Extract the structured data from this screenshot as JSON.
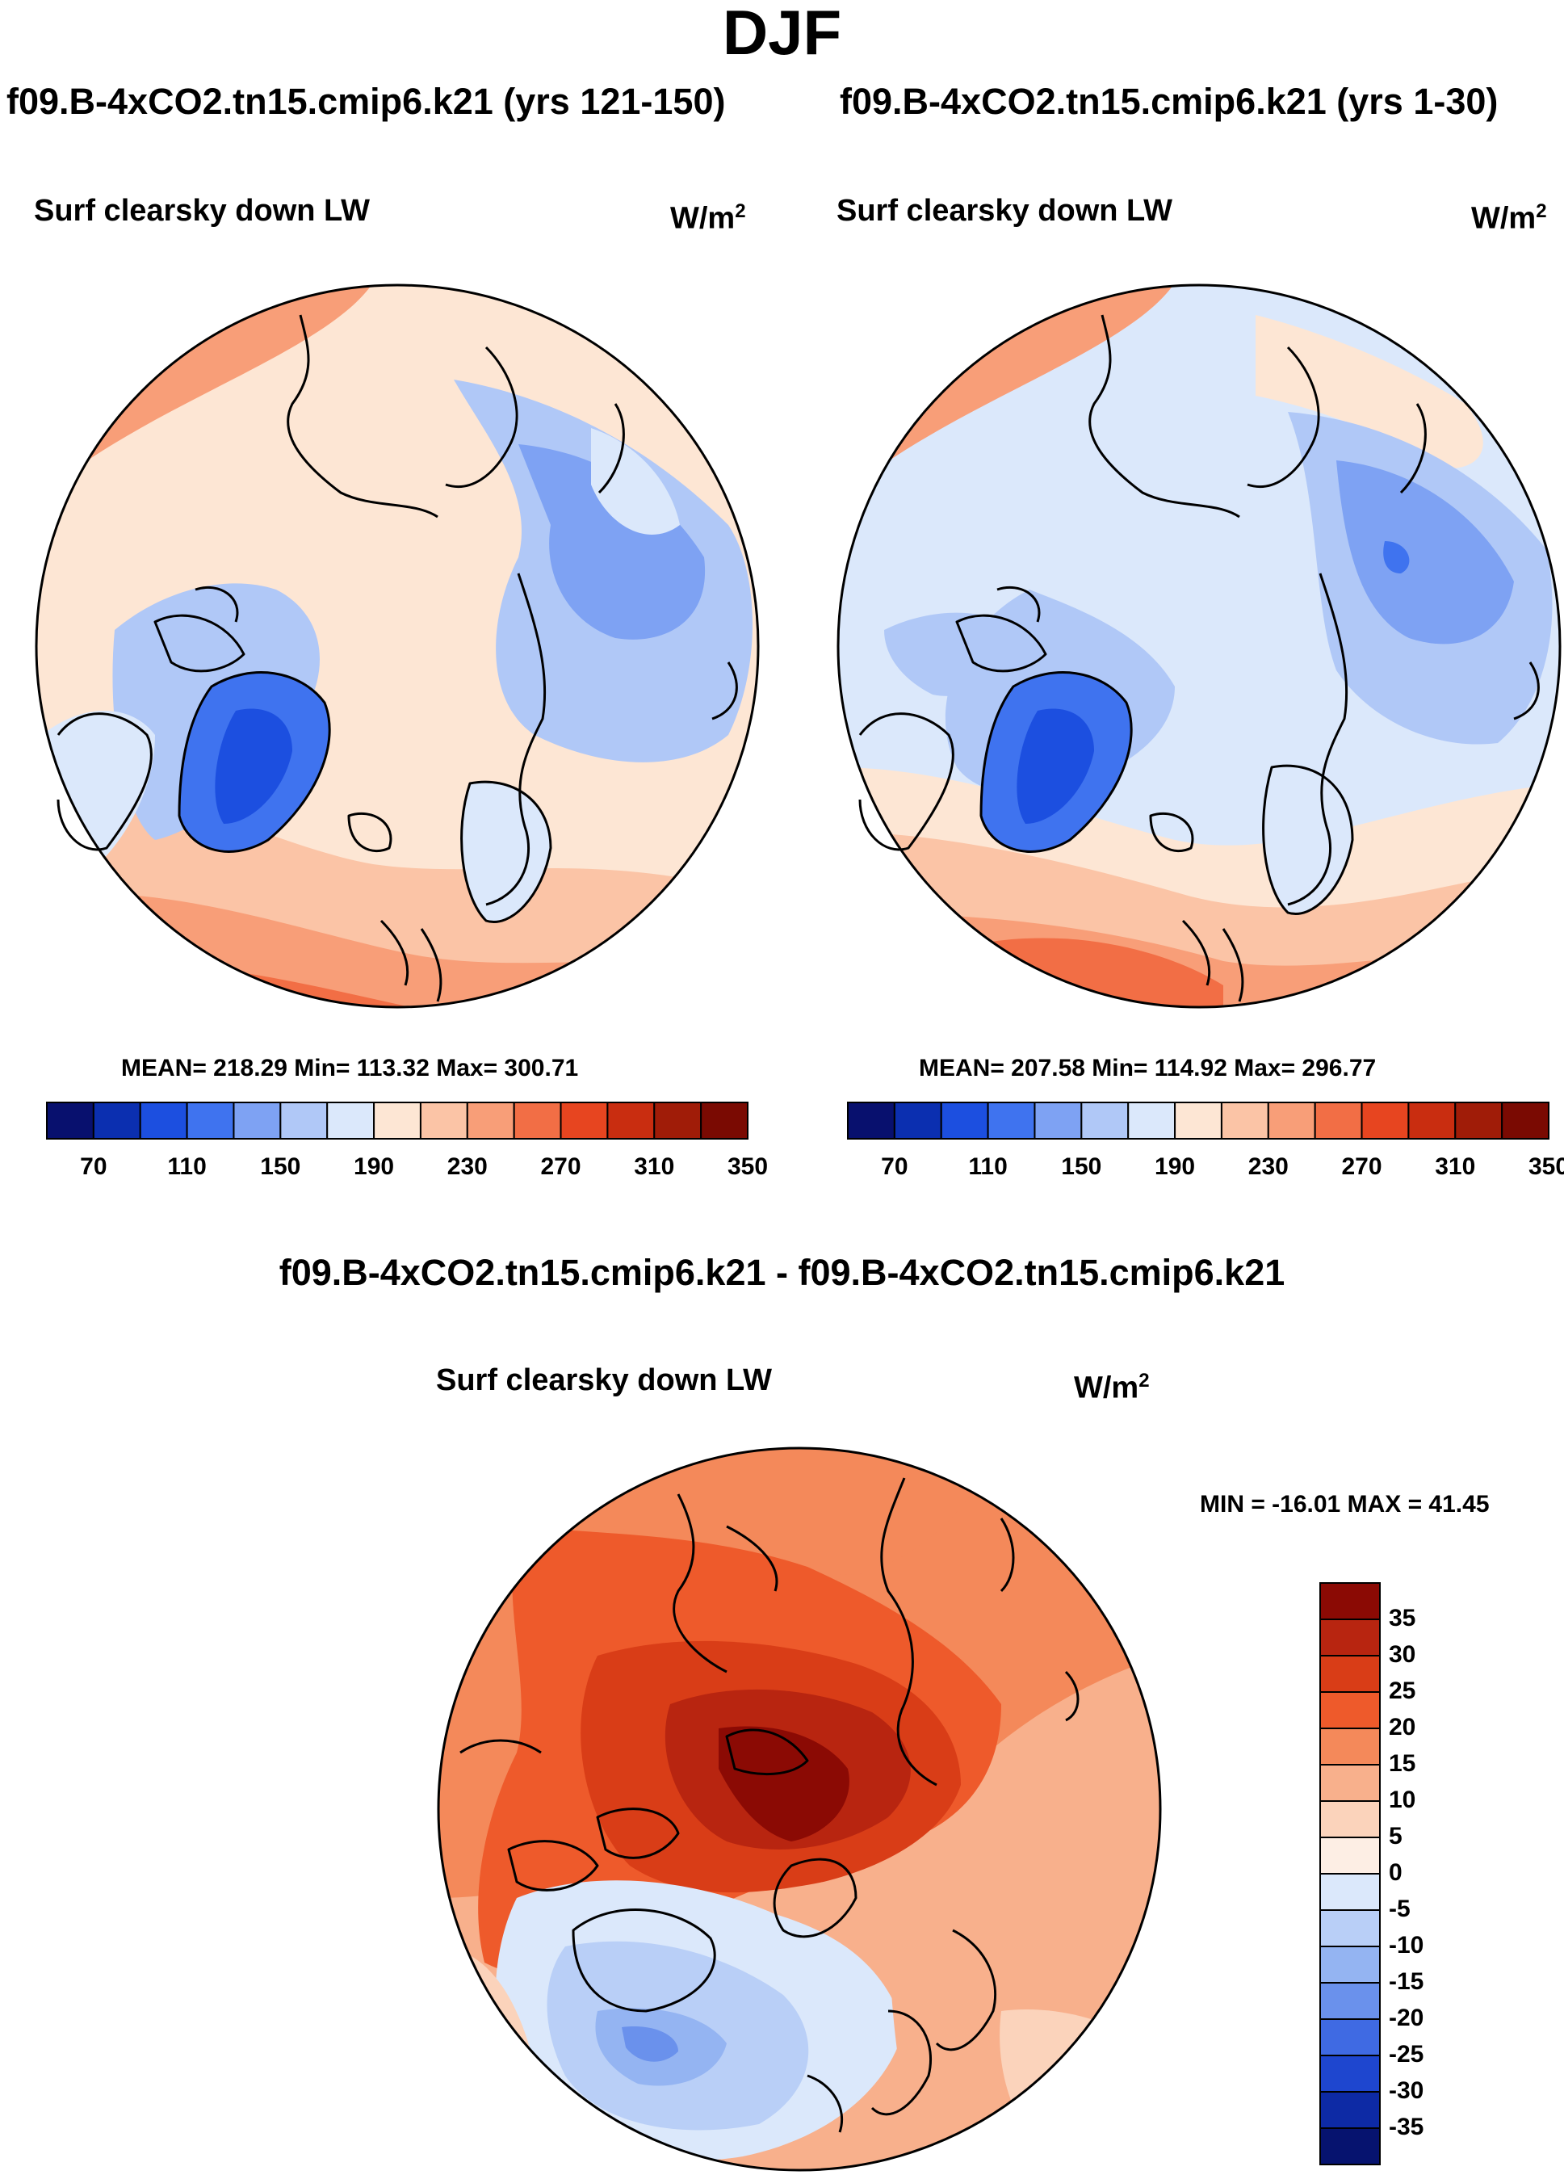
{
  "season": "DJF",
  "panels": [
    {
      "case_title": "f09.B-4xCO2.tn15.cmip6.k21 (yrs 121-150)",
      "variable": "Surf clearsky down LW",
      "units_base": "W/m",
      "units_exp": "2",
      "stats": "MEAN= 218.29  Min= 113.32  Max= 300.71",
      "colorbar_ticks": [
        "70",
        "110",
        "150",
        "190",
        "230",
        "270",
        "310",
        "350"
      ]
    },
    {
      "case_title": "f09.B-4xCO2.tn15.cmip6.k21 (yrs 1-30)",
      "variable": "Surf clearsky down LW",
      "units_base": "W/m",
      "units_exp": "2",
      "stats": "MEAN= 207.58  Min= 114.92  Max= 296.77",
      "colorbar_ticks": [
        "70",
        "110",
        "150",
        "190",
        "230",
        "270",
        "310",
        "350"
      ]
    }
  ],
  "difference": {
    "case_title": "f09.B-4xCO2.tn15.cmip6.k21 - f09.B-4xCO2.tn15.cmip6.k21",
    "variable": "Surf clearsky down LW",
    "units_base": "W/m",
    "units_exp": "2",
    "stats": "MIN = -16.01 MAX =  41.45",
    "colorbar_ticks": [
      "35",
      "30",
      "25",
      "20",
      "15",
      "10",
      "5",
      "0",
      "-5",
      "-10",
      "-15",
      "-20",
      "-25",
      "-30",
      "-35"
    ]
  },
  "colors": {
    "abs_scale": [
      "#08106e",
      "#0b2fb0",
      "#1c4fe0",
      "#3f73ef",
      "#7ea2f3",
      "#b0c8f7",
      "#dbe8fb",
      "#fde6d4",
      "#fbc4a6",
      "#f89e78",
      "#f26e45",
      "#e74520",
      "#c92d10",
      "#a01c08",
      "#7a0a02"
    ],
    "diff_scale": [
      "#8b0a04",
      "#b82510",
      "#d93d17",
      "#ee5a2b",
      "#f4895a",
      "#f8b08c",
      "#fbd3bb",
      "#fdeee4",
      "#dbe8fb",
      "#b9cff7",
      "#94b4f2",
      "#6a91ec",
      "#3f6ae3",
      "#1e46cf",
      "#0d2aa5",
      "#06136f"
    ]
  }
}
